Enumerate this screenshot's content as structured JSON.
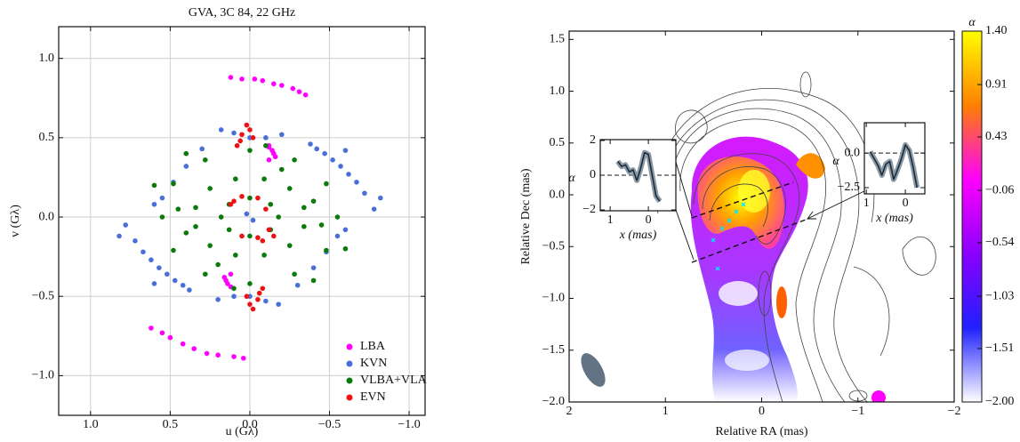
{
  "chart_data": [
    {
      "type": "scatter",
      "title": "GVA, 3C 84, 22 GHz",
      "x_label": "u (Gλ)",
      "y_label": "v (Gλ)",
      "xlim": [
        1.2,
        -1.1
      ],
      "ylim": [
        -1.25,
        1.2
      ],
      "xticks": [
        {
          "value": 1,
          "label": "1.0"
        },
        {
          "value": 0.5,
          "label": "0.5"
        },
        {
          "value": 0,
          "label": "0.0"
        },
        {
          "value": -0.5,
          "label": "−0.5"
        },
        {
          "value": -1,
          "label": "−1.0"
        }
      ],
      "yticks": [
        {
          "value": -1,
          "label": "−1.0"
        },
        {
          "value": -0.5,
          "label": "−0.5"
        },
        {
          "value": 0,
          "label": "0.0"
        },
        {
          "value": 0.5,
          "label": "0.5"
        },
        {
          "value": 1,
          "label": "1.0"
        }
      ],
      "grid": true,
      "legend": "lower right",
      "series": [
        {
          "name": "LBA",
          "color": "#ff00ff",
          "x": [
            0.12,
            0.05,
            -0.03,
            -0.08,
            -0.15,
            -0.2,
            -0.27,
            -0.31,
            -0.35,
            -0.12,
            -0.14,
            -0.15,
            -0.16,
            -0.12,
            -0.12,
            0.62,
            0.55,
            0.5,
            0.42,
            0.35,
            0.27,
            0.2,
            0.1,
            0.04,
            0.12,
            0.14,
            0.15,
            0.16,
            0.12
          ],
          "values": [
            0.88,
            0.87,
            0.87,
            0.86,
            0.84,
            0.83,
            0.81,
            0.79,
            0.77,
            0.44,
            0.42,
            0.4,
            0.38,
            0.36,
            0.45,
            -0.7,
            -0.73,
            -0.76,
            -0.8,
            -0.83,
            -0.86,
            -0.87,
            -0.88,
            -0.89,
            -0.44,
            -0.42,
            -0.4,
            -0.38,
            -0.36
          ]
        },
        {
          "name": "KVN",
          "color": "#4a6fd8",
          "x": [
            -0.38,
            -0.42,
            -0.47,
            -0.52,
            -0.57,
            -0.62,
            -0.67,
            -0.72,
            -0.78,
            -0.82,
            -0.6,
            -0.2,
            -0.1,
            0.0,
            0.1,
            0.18,
            0.3,
            0.4,
            0.48,
            0.55,
            0.6,
            0.02,
            0.38,
            0.42,
            0.47,
            0.52,
            0.57,
            0.62,
            0.67,
            0.72,
            0.78,
            0.82,
            0.6,
            0.2,
            0.1,
            0.0,
            -0.1,
            -0.18,
            -0.3,
            -0.4,
            -0.48,
            -0.55,
            -0.6,
            -0.02
          ],
          "values": [
            0.46,
            0.43,
            0.4,
            0.36,
            0.32,
            0.27,
            0.22,
            0.15,
            0.05,
            0.12,
            0.42,
            0.52,
            0.5,
            0.5,
            0.53,
            0.55,
            0.43,
            0.32,
            0.22,
            0.12,
            0.08,
            0.02,
            -0.46,
            -0.43,
            -0.4,
            -0.36,
            -0.32,
            -0.27,
            -0.22,
            -0.15,
            -0.05,
            -0.12,
            -0.42,
            -0.52,
            -0.5,
            -0.5,
            -0.53,
            -0.55,
            -0.43,
            -0.32,
            -0.22,
            -0.12,
            -0.08,
            -0.02
          ]
        },
        {
          "name": "VLBA+VLA",
          "color": "#0a7a0a",
          "x": [
            0.55,
            0.48,
            0.28,
            0,
            -0.28,
            -0.48,
            -0.55,
            -0.48,
            -0.28,
            0,
            0.28,
            0.48,
            0.34,
            0.25,
            0.09,
            -0.09,
            -0.25,
            -0.34,
            -0.34,
            -0.25,
            -0.09,
            0.09,
            0.25,
            0.34,
            0.18,
            0.13,
            0,
            -0.13,
            -0.18,
            -0.13,
            0,
            0.13,
            0.6,
            0.4,
            -0.1,
            -0.6,
            -0.4,
            0.1,
            0.4,
            0.2,
            -0.4,
            -0.2,
            0.45,
            -0.45
          ],
          "values": [
            0,
            0.21,
            0.36,
            0.42,
            0.36,
            0.21,
            0,
            -0.21,
            -0.36,
            -0.42,
            -0.36,
            -0.21,
            0.06,
            0.18,
            0.24,
            0.24,
            0.18,
            0.06,
            -0.06,
            -0.18,
            -0.24,
            -0.24,
            -0.18,
            -0.06,
            0,
            0.08,
            0.12,
            0.08,
            0,
            -0.08,
            -0.12,
            -0.08,
            0.2,
            0.4,
            0.45,
            -0.2,
            -0.4,
            -0.45,
            -0.1,
            -0.3,
            0.1,
            0.3,
            0.05,
            -0.05
          ]
        },
        {
          "name": "EVN",
          "color": "#ee1111",
          "x": [
            0.02,
            0.0,
            0.05,
            -0.02,
            0.06,
            0.08,
            -0.02,
            0.0,
            -0.05,
            0.02,
            -0.06,
            -0.08,
            0.1,
            0.05,
            -0.05,
            -0.1,
            -0.12,
            -0.05,
            0.05,
            0.12,
            -0.15,
            -0.08
          ],
          "values": [
            0.58,
            0.55,
            0.52,
            0.5,
            0.48,
            0.45,
            -0.58,
            -0.55,
            -0.52,
            -0.5,
            -0.48,
            -0.45,
            0.1,
            0.13,
            0.12,
            0.05,
            -0.08,
            -0.13,
            -0.12,
            0.08,
            -0.12,
            -0.15
          ]
        }
      ]
    },
    {
      "type": "image",
      "x_label": "Relative RA (mas)",
      "y_label": "Relative Dec (mas)",
      "xlim": [
        2,
        -2
      ],
      "ylim": [
        -2,
        1.58
      ],
      "xticks": [
        2,
        1,
        0,
        {
          "value": -1,
          "label": "−1"
        },
        {
          "value": -2,
          "label": "−2"
        }
      ],
      "yticks": [
        {
          "value": -2,
          "label": "−2.0"
        },
        {
          "value": -1.5,
          "label": "−1.5"
        },
        {
          "value": -1,
          "label": "−1.0"
        },
        {
          "value": -0.5,
          "label": "−0.5"
        },
        {
          "value": 0,
          "label": "0.0"
        },
        0.5,
        {
          "value": 1,
          "label": "1.0"
        },
        1.5
      ],
      "colorbar": {
        "label": "α",
        "lim": [
          -2,
          1.4
        ],
        "ticks": [
          {
            "value": 1.4,
            "label": "1.40"
          },
          {
            "value": 0.91,
            "label": "0.91"
          },
          {
            "value": 0.43,
            "label": "0.43"
          },
          {
            "value": -0.06,
            "label": "−0.06"
          },
          {
            "value": -0.54,
            "label": "−0.54"
          },
          {
            "value": -1.03,
            "label": "−1.03"
          },
          {
            "value": -1.51,
            "label": "−1.51"
          },
          {
            "value": -2,
            "label": "−2.00"
          }
        ],
        "colors": [
          "#ffffff",
          "#2020ff",
          "#8a00ff",
          "#ff00ff",
          "#ff8000",
          "#ffff00"
        ]
      }
    },
    {
      "type": "line",
      "x_label": "x (mas)",
      "y_label": "α",
      "xlim": [
        1.26,
        -0.72
      ],
      "ylim": [
        -2.05,
        2.05
      ],
      "xticks": [
        1,
        0
      ],
      "yticks": [
        2,
        0,
        {
          "value": -2,
          "label": "−2"
        }
      ],
      "hline": 0,
      "color": "#1c2b3a",
      "x": [
        0.8,
        0.7,
        0.6,
        0.5,
        0.4,
        0.3,
        0.2,
        0.1,
        0.0,
        -0.1,
        -0.2,
        -0.3
      ],
      "values": [
        0.8,
        0.5,
        0.6,
        0.2,
        0.3,
        -0.3,
        0.4,
        1.3,
        1.2,
        0.0,
        -1.2,
        -1.5
      ]
    },
    {
      "type": "line",
      "x_label": "x (mas)",
      "y_label": "α",
      "xlim": [
        1.05,
        -0.5
      ],
      "ylim": [
        -2.95,
        2.2
      ],
      "xticks": [
        1,
        0
      ],
      "yticks": [
        {
          "value": 0,
          "label": "0.0"
        },
        {
          "value": -2.5,
          "label": "−2.5"
        }
      ],
      "hline": 0,
      "color": "#1c2b3a",
      "x": [
        0.9,
        0.8,
        0.7,
        0.6,
        0.5,
        0.4,
        0.3,
        0.2,
        0.1,
        0.0,
        -0.1,
        -0.2,
        -0.3
      ],
      "values": [
        0.1,
        -0.4,
        -0.9,
        -1.6,
        -0.8,
        -0.6,
        -1.9,
        -1.2,
        -0.4,
        0.6,
        0.2,
        -1.0,
        -2.5
      ]
    }
  ]
}
